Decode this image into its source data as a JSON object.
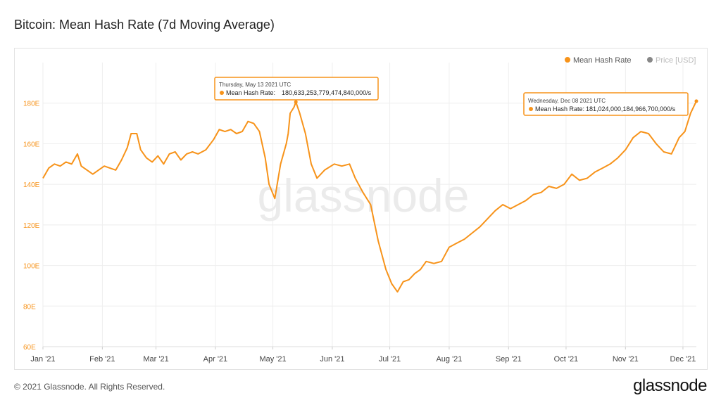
{
  "title": "Bitcoin: Mean Hash Rate (7d Moving Average)",
  "footer": {
    "copyright": "© 2021 Glassnode. All Rights Reserved.",
    "logo": "glassnode"
  },
  "watermark": "glassnode",
  "colors": {
    "series": "#f7931a",
    "price": "#888888",
    "grid": "#eeeeee"
  },
  "legend": [
    {
      "label": "Mean Hash Rate",
      "active": true
    },
    {
      "label": "Price [USD]",
      "active": false
    }
  ],
  "tooltips": [
    {
      "date": "Thursday, May 13 2021 UTC",
      "label": "Mean Hash Rate:",
      "value": "180,633,253,779,474,840,000/s"
    },
    {
      "date": "Wednesday, Dec 08 2021 UTC",
      "label": "Mean Hash Rate:",
      "value": "181,024,000,184,966,700,000/s"
    }
  ],
  "chart_data": {
    "type": "line",
    "y_ticks": [
      "60E",
      "80E",
      "100E",
      "120E",
      "140E",
      "160E",
      "180E"
    ],
    "x_ticks": [
      "Jan '21",
      "Feb '21",
      "Mar '21",
      "Apr '21",
      "May '21",
      "Jun '21",
      "Jul '21",
      "Aug '21",
      "Sep '21",
      "Oct '21",
      "Nov '21",
      "Dec '21"
    ],
    "ylim": [
      60,
      200
    ],
    "xlim": [
      "2021-01-01",
      "2021-12-08"
    ],
    "grid": true,
    "legend_position": "top-right",
    "series": [
      {
        "name": "Mean Hash Rate",
        "unit": "EH/s",
        "points": [
          [
            "2021-01-01",
            143
          ],
          [
            "2021-01-04",
            148
          ],
          [
            "2021-01-07",
            150
          ],
          [
            "2021-01-10",
            149
          ],
          [
            "2021-01-13",
            151
          ],
          [
            "2021-01-16",
            150
          ],
          [
            "2021-01-19",
            155
          ],
          [
            "2021-01-21",
            149
          ],
          [
            "2021-01-24",
            147
          ],
          [
            "2021-01-27",
            145
          ],
          [
            "2021-01-30",
            147
          ],
          [
            "2021-02-02",
            149
          ],
          [
            "2021-02-05",
            148
          ],
          [
            "2021-02-08",
            147
          ],
          [
            "2021-02-11",
            152
          ],
          [
            "2021-02-14",
            158
          ],
          [
            "2021-02-16",
            165
          ],
          [
            "2021-02-19",
            165
          ],
          [
            "2021-02-21",
            157
          ],
          [
            "2021-02-24",
            153
          ],
          [
            "2021-02-27",
            151
          ],
          [
            "2021-03-02",
            154
          ],
          [
            "2021-03-05",
            150
          ],
          [
            "2021-03-08",
            155
          ],
          [
            "2021-03-11",
            156
          ],
          [
            "2021-03-14",
            152
          ],
          [
            "2021-03-17",
            155
          ],
          [
            "2021-03-20",
            156
          ],
          [
            "2021-03-23",
            155
          ],
          [
            "2021-03-27",
            157
          ],
          [
            "2021-03-31",
            162
          ],
          [
            "2021-04-03",
            167
          ],
          [
            "2021-04-06",
            166
          ],
          [
            "2021-04-09",
            167
          ],
          [
            "2021-04-12",
            165
          ],
          [
            "2021-04-15",
            166
          ],
          [
            "2021-04-18",
            171
          ],
          [
            "2021-04-21",
            170
          ],
          [
            "2021-04-24",
            166
          ],
          [
            "2021-04-27",
            153
          ],
          [
            "2021-04-29",
            140
          ],
          [
            "2021-05-02",
            133
          ],
          [
            "2021-05-05",
            150
          ],
          [
            "2021-05-08",
            160
          ],
          [
            "2021-05-09",
            165
          ],
          [
            "2021-05-10",
            175
          ],
          [
            "2021-05-12",
            178
          ],
          [
            "2021-05-13",
            180.6
          ],
          [
            "2021-05-15",
            175
          ],
          [
            "2021-05-18",
            165
          ],
          [
            "2021-05-21",
            150
          ],
          [
            "2021-05-24",
            143
          ],
          [
            "2021-05-28",
            147
          ],
          [
            "2021-06-02",
            150
          ],
          [
            "2021-06-06",
            149
          ],
          [
            "2021-06-10",
            150
          ],
          [
            "2021-06-13",
            143
          ],
          [
            "2021-06-17",
            136
          ],
          [
            "2021-06-21",
            130
          ],
          [
            "2021-06-25",
            112
          ],
          [
            "2021-06-29",
            98
          ],
          [
            "2021-07-02",
            91
          ],
          [
            "2021-07-05",
            87
          ],
          [
            "2021-07-08",
            92
          ],
          [
            "2021-07-11",
            93
          ],
          [
            "2021-07-14",
            96
          ],
          [
            "2021-07-17",
            98
          ],
          [
            "2021-07-20",
            102
          ],
          [
            "2021-07-24",
            101
          ],
          [
            "2021-07-28",
            102
          ],
          [
            "2021-08-01",
            109
          ],
          [
            "2021-08-05",
            111
          ],
          [
            "2021-08-09",
            113
          ],
          [
            "2021-08-13",
            116
          ],
          [
            "2021-08-17",
            119
          ],
          [
            "2021-08-21",
            123
          ],
          [
            "2021-08-25",
            127
          ],
          [
            "2021-08-29",
            130
          ],
          [
            "2021-09-02",
            128
          ],
          [
            "2021-09-06",
            130
          ],
          [
            "2021-09-10",
            132
          ],
          [
            "2021-09-14",
            135
          ],
          [
            "2021-09-18",
            136
          ],
          [
            "2021-09-22",
            139
          ],
          [
            "2021-09-26",
            138
          ],
          [
            "2021-09-30",
            140
          ],
          [
            "2021-10-04",
            145
          ],
          [
            "2021-10-08",
            142
          ],
          [
            "2021-10-12",
            143
          ],
          [
            "2021-10-16",
            146
          ],
          [
            "2021-10-20",
            148
          ],
          [
            "2021-10-24",
            150
          ],
          [
            "2021-10-28",
            153
          ],
          [
            "2021-11-01",
            157
          ],
          [
            "2021-11-05",
            163
          ],
          [
            "2021-11-09",
            166
          ],
          [
            "2021-11-13",
            165
          ],
          [
            "2021-11-17",
            160
          ],
          [
            "2021-11-21",
            156
          ],
          [
            "2021-11-25",
            155
          ],
          [
            "2021-11-27",
            159
          ],
          [
            "2021-11-29",
            163
          ],
          [
            "2021-12-02",
            166
          ],
          [
            "2021-12-05",
            175
          ],
          [
            "2021-12-08",
            181
          ]
        ]
      }
    ],
    "annotations": [
      {
        "x": "2021-05-13",
        "y": 180.6
      },
      {
        "x": "2021-12-08",
        "y": 181.0
      }
    ]
  }
}
